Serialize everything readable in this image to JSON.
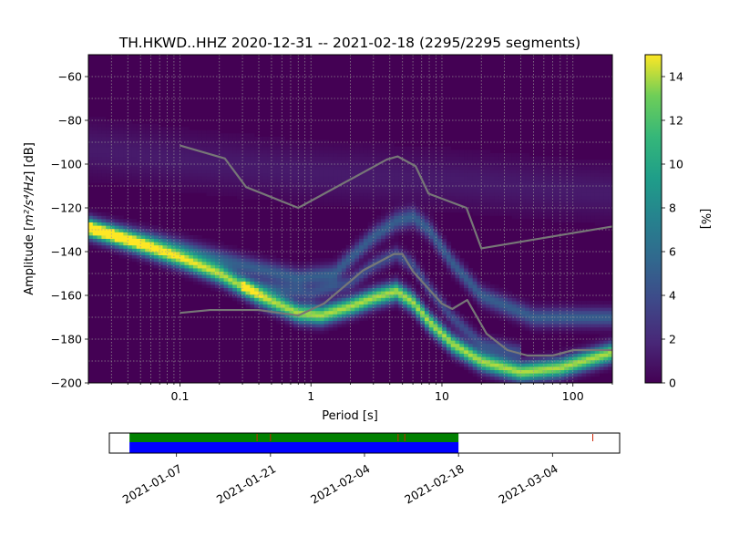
{
  "chart_data": {
    "type": "heatmap",
    "title": "TH.HKWD..HHZ   2020-12-31 -- 2021-02-18  (2295/2295 segments)",
    "xlabel": "Period [s]",
    "ylabel_prefix": "Amplitude [",
    "ylabel_unit": "m²/s⁴/Hz",
    "ylabel_suffix": "] [dB]",
    "xscale": "log",
    "xlim": [
      0.02,
      200
    ],
    "ylim": [
      -200,
      -50
    ],
    "xticks": [
      {
        "value": 0.1,
        "label": "0.1"
      },
      {
        "value": 1,
        "label": "1"
      },
      {
        "value": 10,
        "label": "10"
      },
      {
        "value": 100,
        "label": "100"
      }
    ],
    "yticks": [
      {
        "value": -60,
        "label": "−60"
      },
      {
        "value": -80,
        "label": "−80"
      },
      {
        "value": -100,
        "label": "−100"
      },
      {
        "value": -120,
        "label": "−120"
      },
      {
        "value": -140,
        "label": "−140"
      },
      {
        "value": -160,
        "label": "−160"
      },
      {
        "value": -180,
        "label": "−180"
      },
      {
        "value": -200,
        "label": "−200"
      }
    ],
    "grid": true,
    "colormap": "viridis",
    "colorbar": {
      "label": "[%]",
      "min": 0,
      "max": 15,
      "ticks": [
        {
          "value": 0,
          "label": "0"
        },
        {
          "value": 2,
          "label": "2"
        },
        {
          "value": 4,
          "label": "4"
        },
        {
          "value": 6,
          "label": "6"
        },
        {
          "value": 8,
          "label": "8"
        },
        {
          "value": 10,
          "label": "10"
        },
        {
          "value": 12,
          "label": "12"
        },
        {
          "value": 14,
          "label": "14"
        }
      ]
    },
    "density_bands": [
      {
        "name": "main",
        "points": [
          [
            0.02,
            -129
          ],
          [
            0.045,
            -136
          ],
          [
            0.1,
            -143
          ],
          [
            0.2,
            -150
          ],
          [
            0.4,
            -160
          ],
          [
            0.8,
            -168
          ],
          [
            1.2,
            -169
          ],
          [
            2,
            -165
          ],
          [
            3,
            -161
          ],
          [
            4.5,
            -158
          ],
          [
            6,
            -163
          ],
          [
            8,
            -172
          ],
          [
            12,
            -182
          ],
          [
            20,
            -190
          ],
          [
            40,
            -195
          ],
          [
            80,
            -193
          ],
          [
            200,
            -186
          ]
        ],
        "width": 3,
        "peak": 14
      },
      {
        "name": "upper",
        "points": [
          [
            0.02,
            -129
          ],
          [
            0.045,
            -133
          ],
          [
            0.1,
            -138
          ],
          [
            0.3,
            -146
          ],
          [
            0.8,
            -152
          ],
          [
            1.5,
            -150
          ],
          [
            3,
            -133
          ],
          [
            4.5,
            -126
          ],
          [
            6,
            -124
          ],
          [
            8,
            -130
          ],
          [
            12,
            -145
          ],
          [
            20,
            -160
          ],
          [
            50,
            -170
          ],
          [
            200,
            -170
          ]
        ],
        "width": 3,
        "peak": 5
      },
      {
        "name": "middle",
        "points": [
          [
            0.3,
            -155
          ],
          [
            1,
            -159
          ],
          [
            2,
            -154
          ],
          [
            3,
            -146
          ],
          [
            4.5,
            -141
          ],
          [
            6,
            -146
          ],
          [
            8,
            -157
          ],
          [
            12,
            -170
          ],
          [
            20,
            -182
          ],
          [
            40,
            -186
          ]
        ],
        "width": 2.5,
        "peak": 4
      },
      {
        "name": "diffuse",
        "points": [
          [
            0.02,
            -93
          ],
          [
            0.1,
            -98
          ],
          [
            1,
            -104
          ],
          [
            10,
            -107
          ],
          [
            100,
            -112
          ],
          [
            200,
            -113
          ]
        ],
        "width": 8,
        "peak": 1.2
      }
    ],
    "noise_models": [
      {
        "name": "NHNM",
        "points": [
          [
            0.1,
            -91.5
          ],
          [
            0.22,
            -97.4
          ],
          [
            0.32,
            -110.5
          ],
          [
            0.8,
            -120
          ],
          [
            3.8,
            -97.9
          ],
          [
            4.6,
            -96.5
          ],
          [
            6.3,
            -101
          ],
          [
            7.9,
            -113.5
          ],
          [
            15.4,
            -120
          ],
          [
            20,
            -138.5
          ],
          [
            200,
            -128.5
          ]
        ]
      },
      {
        "name": "NLNM",
        "points": [
          [
            0.1,
            -168
          ],
          [
            0.17,
            -166.7
          ],
          [
            0.4,
            -166.7
          ],
          [
            0.8,
            -169.2
          ],
          [
            1.26,
            -163.7
          ],
          [
            2.5,
            -148.6
          ],
          [
            4.3,
            -141.1
          ],
          [
            5,
            -141.1
          ],
          [
            6,
            -149
          ],
          [
            10,
            -163.8
          ],
          [
            12,
            -166.2
          ],
          [
            15.6,
            -162.1
          ],
          [
            21.9,
            -177.5
          ],
          [
            31.6,
            -185
          ],
          [
            45,
            -187.5
          ],
          [
            70,
            -187.5
          ],
          [
            101,
            -185
          ],
          [
            200,
            -185
          ]
        ]
      }
    ],
    "coverage_axis": {
      "date_ticks": [
        "2021-01-07",
        "2021-01-21",
        "2021-02-04",
        "2021-02-18",
        "2021-03-04"
      ],
      "xlim": [
        "2020-12-28",
        "2021-03-14"
      ],
      "data_span": [
        "2020-12-31",
        "2021-02-18"
      ],
      "gaps": [
        "2021-01-19",
        "2021-01-21",
        "2021-02-09",
        "2021-02-10"
      ],
      "extra_gap": "2021-03-10"
    },
    "colors": {
      "noise_model": "#777777",
      "coverage_top": "#008000",
      "coverage_bottom": "#0000ff",
      "gap_mark": "#cc2200",
      "grid": "#9a9a9a"
    }
  }
}
